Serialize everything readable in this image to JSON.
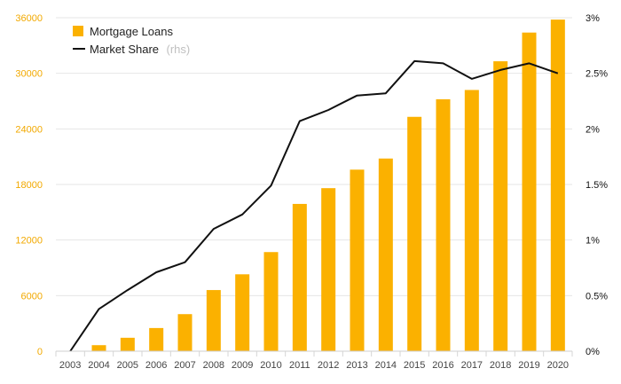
{
  "chart_data": {
    "type": "bar+line",
    "categories": [
      "2003",
      "2004",
      "2005",
      "2006",
      "2007",
      "2008",
      "2009",
      "2010",
      "2011",
      "2012",
      "2013",
      "2014",
      "2015",
      "2016",
      "2017",
      "2018",
      "2019",
      "2020"
    ],
    "series": [
      {
        "name": "Mortgage Loans",
        "type": "bar",
        "axis": "left",
        "color": "#fbb100",
        "values": [
          0,
          650,
          1450,
          2500,
          4000,
          6600,
          8300,
          10700,
          15900,
          17600,
          19600,
          20800,
          25300,
          27200,
          28200,
          31300,
          34400,
          35800
        ]
      },
      {
        "name": "Market Share",
        "name_note": "(rhs)",
        "type": "line",
        "axis": "right",
        "color": "#111111",
        "values": [
          0.0,
          0.38,
          0.55,
          0.71,
          0.8,
          1.1,
          1.23,
          1.49,
          2.07,
          2.17,
          2.3,
          2.32,
          2.61,
          2.59,
          2.45,
          2.53,
          2.59,
          2.5
        ]
      }
    ],
    "y_left": {
      "min": 0,
      "max": 36000,
      "ticks": [
        0,
        6000,
        12000,
        18000,
        24000,
        30000,
        36000
      ],
      "tick_labels": [
        "0",
        "6000",
        "12000",
        "18000",
        "24000",
        "30000",
        "36000"
      ],
      "color": "#f2a900"
    },
    "y_right": {
      "min": 0,
      "max": 3,
      "ticks": [
        0,
        0.5,
        1,
        1.5,
        2,
        2.5,
        3
      ],
      "tick_labels": [
        "0%",
        "0.5%",
        "1%",
        "1.5%",
        "2%",
        "2.5%",
        "3%"
      ]
    },
    "grid": true,
    "legend": "top-left",
    "title": "",
    "xlabel": "",
    "ylabel": ""
  }
}
